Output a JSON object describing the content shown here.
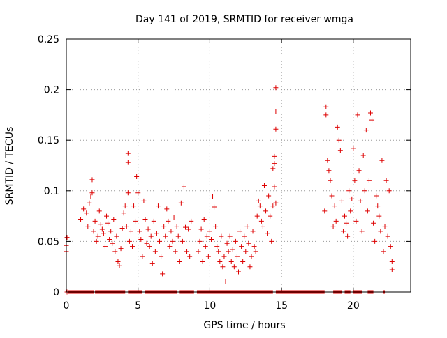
{
  "chart_data": {
    "type": "scatter",
    "title": "Day 141 of 2019, SRMTID for receiver wmga",
    "xlabel": "GPS time / hours",
    "ylabel": "SRMTID / TECUs",
    "xlim": [
      0,
      24
    ],
    "ylim": [
      0,
      0.25
    ],
    "xticks": [
      0,
      5,
      10,
      15,
      20
    ],
    "xtick_labels": [
      "0",
      "5",
      "10",
      "15",
      "20"
    ],
    "yticks": [
      0,
      0.05,
      0.1,
      0.15,
      0.2,
      0.25
    ],
    "ytick_labels": [
      "0",
      "0.05",
      "0.1",
      "0.15",
      "0.2",
      "0.25"
    ],
    "grid": true,
    "marker": "+",
    "series": [
      {
        "name": "SRMTID",
        "color": "#dd0000",
        "points": [
          [
            0.0,
            0.04
          ],
          [
            0.0,
            0.046
          ],
          [
            0.05,
            0.054
          ],
          [
            0.05,
            0.0
          ],
          [
            1.0,
            0.072
          ],
          [
            1.2,
            0.082
          ],
          [
            1.4,
            0.078
          ],
          [
            1.5,
            0.065
          ],
          [
            1.6,
            0.088
          ],
          [
            1.7,
            0.094
          ],
          [
            1.8,
            0.098
          ],
          [
            1.8,
            0.111
          ],
          [
            1.9,
            0.06
          ],
          [
            2.0,
            0.07
          ],
          [
            2.1,
            0.05
          ],
          [
            2.2,
            0.055
          ],
          [
            2.3,
            0.08
          ],
          [
            2.4,
            0.067
          ],
          [
            2.5,
            0.062
          ],
          [
            2.6,
            0.058
          ],
          [
            2.7,
            0.045
          ],
          [
            2.8,
            0.075
          ],
          [
            2.9,
            0.068
          ],
          [
            3.0,
            0.052
          ],
          [
            3.1,
            0.06
          ],
          [
            3.2,
            0.048
          ],
          [
            3.3,
            0.072
          ],
          [
            3.4,
            0.04
          ],
          [
            3.5,
            0.055
          ],
          [
            3.6,
            0.03
          ],
          [
            3.7,
            0.026
          ],
          [
            3.8,
            0.043
          ],
          [
            3.9,
            0.063
          ],
          [
            4.0,
            0.078
          ],
          [
            4.1,
            0.085
          ],
          [
            4.2,
            0.065
          ],
          [
            4.3,
            0.098
          ],
          [
            4.3,
            0.137
          ],
          [
            4.3,
            0.128
          ],
          [
            4.4,
            0.05
          ],
          [
            4.5,
            0.06
          ],
          [
            4.6,
            0.045
          ],
          [
            4.7,
            0.085
          ],
          [
            4.8,
            0.07
          ],
          [
            4.9,
            0.114
          ],
          [
            5.0,
            0.098
          ],
          [
            5.1,
            0.06
          ],
          [
            5.2,
            0.052
          ],
          [
            5.3,
            0.035
          ],
          [
            5.4,
            0.09
          ],
          [
            5.5,
            0.072
          ],
          [
            5.6,
            0.048
          ],
          [
            5.7,
            0.062
          ],
          [
            5.8,
            0.045
          ],
          [
            5.9,
            0.055
          ],
          [
            6.0,
            0.028
          ],
          [
            6.1,
            0.07
          ],
          [
            6.2,
            0.04
          ],
          [
            6.3,
            0.058
          ],
          [
            6.4,
            0.085
          ],
          [
            6.5,
            0.05
          ],
          [
            6.6,
            0.035
          ],
          [
            6.7,
            0.018
          ],
          [
            6.8,
            0.065
          ],
          [
            6.9,
            0.055
          ],
          [
            7.0,
            0.082
          ],
          [
            7.1,
            0.07
          ],
          [
            7.2,
            0.045
          ],
          [
            7.3,
            0.06
          ],
          [
            7.4,
            0.05
          ],
          [
            7.5,
            0.074
          ],
          [
            7.6,
            0.04
          ],
          [
            7.7,
            0.065
          ],
          [
            7.8,
            0.055
          ],
          [
            7.9,
            0.03
          ],
          [
            8.0,
            0.088
          ],
          [
            8.1,
            0.05
          ],
          [
            8.2,
            0.104
          ],
          [
            8.3,
            0.064
          ],
          [
            8.4,
            0.04
          ],
          [
            8.5,
            0.062
          ],
          [
            8.6,
            0.035
          ],
          [
            8.7,
            0.07
          ],
          [
            9.2,
            0.04
          ],
          [
            9.3,
            0.05
          ],
          [
            9.4,
            0.062
          ],
          [
            9.5,
            0.03
          ],
          [
            9.6,
            0.072
          ],
          [
            9.7,
            0.045
          ],
          [
            9.8,
            0.055
          ],
          [
            9.9,
            0.035
          ],
          [
            10.0,
            0.06
          ],
          [
            10.1,
            0.052
          ],
          [
            10.2,
            0.094
          ],
          [
            10.3,
            0.084
          ],
          [
            10.4,
            0.065
          ],
          [
            10.5,
            0.045
          ],
          [
            10.6,
            0.04
          ],
          [
            10.7,
            0.03
          ],
          [
            10.8,
            0.055
          ],
          [
            10.9,
            0.025
          ],
          [
            11.0,
            0.035
          ],
          [
            11.1,
            0.01
          ],
          [
            11.2,
            0.048
          ],
          [
            11.3,
            0.04
          ],
          [
            11.4,
            0.055
          ],
          [
            11.5,
            0.03
          ],
          [
            11.6,
            0.042
          ],
          [
            11.7,
            0.025
          ],
          [
            11.8,
            0.05
          ],
          [
            11.9,
            0.035
          ],
          [
            12.0,
            0.02
          ],
          [
            12.1,
            0.06
          ],
          [
            12.2,
            0.045
          ],
          [
            12.3,
            0.03
          ],
          [
            12.4,
            0.055
          ],
          [
            12.5,
            0.04
          ],
          [
            12.6,
            0.065
          ],
          [
            12.7,
            0.048
          ],
          [
            12.8,
            0.025
          ],
          [
            12.9,
            0.035
          ],
          [
            13.0,
            0.06
          ],
          [
            13.1,
            0.045
          ],
          [
            13.2,
            0.04
          ],
          [
            13.3,
            0.075
          ],
          [
            13.4,
            0.09
          ],
          [
            13.5,
            0.085
          ],
          [
            13.6,
            0.07
          ],
          [
            13.7,
            0.065
          ],
          [
            13.8,
            0.105
          ],
          [
            13.9,
            0.08
          ],
          [
            14.0,
            0.058
          ],
          [
            14.1,
            0.095
          ],
          [
            14.2,
            0.075
          ],
          [
            14.3,
            0.05
          ],
          [
            14.4,
            0.085
          ],
          [
            14.4,
            0.122
          ],
          [
            14.5,
            0.134
          ],
          [
            14.5,
            0.127
          ],
          [
            14.5,
            0.104
          ],
          [
            14.6,
            0.088
          ],
          [
            14.6,
            0.202
          ],
          [
            14.6,
            0.178
          ],
          [
            14.6,
            0.161
          ],
          [
            18.0,
            0.08
          ],
          [
            18.1,
            0.183
          ],
          [
            18.1,
            0.175
          ],
          [
            18.2,
            0.13
          ],
          [
            18.3,
            0.12
          ],
          [
            18.4,
            0.11
          ],
          [
            18.5,
            0.095
          ],
          [
            18.6,
            0.065
          ],
          [
            18.7,
            0.085
          ],
          [
            18.8,
            0.07
          ],
          [
            18.9,
            0.163
          ],
          [
            19.0,
            0.15
          ],
          [
            19.1,
            0.14
          ],
          [
            19.2,
            0.09
          ],
          [
            19.3,
            0.06
          ],
          [
            19.4,
            0.075
          ],
          [
            19.5,
            0.068
          ],
          [
            19.6,
            0.055
          ],
          [
            19.7,
            0.1
          ],
          [
            19.8,
            0.08
          ],
          [
            19.9,
            0.092
          ],
          [
            20.0,
            0.142
          ],
          [
            20.1,
            0.11
          ],
          [
            20.2,
            0.07
          ],
          [
            20.3,
            0.175
          ],
          [
            20.4,
            0.12
          ],
          [
            20.5,
            0.09
          ],
          [
            20.6,
            0.06
          ],
          [
            20.7,
            0.135
          ],
          [
            20.8,
            0.1
          ],
          [
            20.9,
            0.16
          ],
          [
            21.0,
            0.08
          ],
          [
            21.1,
            0.11
          ],
          [
            21.2,
            0.177
          ],
          [
            21.3,
            0.17
          ],
          [
            21.4,
            0.068
          ],
          [
            21.5,
            0.05
          ],
          [
            21.6,
            0.095
          ],
          [
            21.7,
            0.085
          ],
          [
            21.8,
            0.075
          ],
          [
            21.9,
            0.06
          ],
          [
            22.0,
            0.13
          ],
          [
            22.1,
            0.04
          ],
          [
            22.2,
            0.065
          ],
          [
            22.3,
            0.11
          ],
          [
            22.4,
            0.055
          ],
          [
            22.5,
            0.1
          ],
          [
            22.6,
            0.045
          ],
          [
            22.7,
            0.03
          ],
          [
            22.7,
            0.022
          ]
        ]
      }
    ],
    "zero_bands": [
      [
        0.1,
        1.9
      ],
      [
        2.0,
        4.1
      ],
      [
        4.3,
        5.3
      ],
      [
        5.5,
        7.7
      ],
      [
        7.9,
        8.9
      ],
      [
        9.1,
        14.4
      ],
      [
        14.6,
        18.0
      ],
      [
        18.6,
        19.2
      ],
      [
        19.4,
        19.8
      ],
      [
        20.0,
        20.6
      ],
      [
        21.0,
        21.4
      ],
      [
        22.1,
        22.2
      ]
    ]
  }
}
